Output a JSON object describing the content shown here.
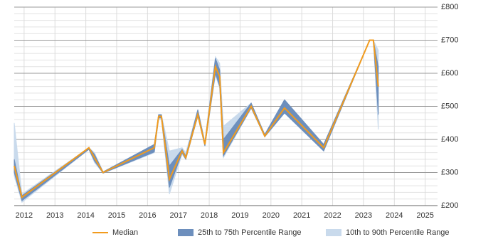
{
  "chart_data": {
    "type": "line",
    "x": [
      2011.68,
      2011.93,
      2014.1,
      2014.28,
      2014.56,
      2016.22,
      2016.36,
      2016.45,
      2016.71,
      2017.12,
      2017.24,
      2017.63,
      2017.86,
      2018.2,
      2018.34,
      2018.46,
      2019.36,
      2019.8,
      2020.44,
      2021.71,
      2023.2,
      2023.32,
      2023.48
    ],
    "series": [
      {
        "name": "10th to 90th Percentile Range",
        "color": "#c9daec",
        "low": [
          290,
          210,
          370,
          330,
          298,
          360,
          460,
          460,
          235,
          355,
          340,
          470,
          380,
          595,
          555,
          345,
          495,
          408,
          480,
          365,
          700,
          700,
          430
        ],
        "high": [
          450,
          235,
          375,
          360,
          302,
          385,
          475,
          475,
          365,
          375,
          360,
          490,
          395,
          650,
          630,
          440,
          510,
          415,
          520,
          385,
          700,
          700,
          670
        ]
      },
      {
        "name": "25th to 75th Percentile Range",
        "color": "#6d8fbd",
        "low": [
          300,
          215,
          370,
          335,
          298,
          362,
          465,
          465,
          255,
          360,
          340,
          470,
          380,
          600,
          560,
          350,
          495,
          408,
          480,
          365,
          700,
          700,
          475
        ],
        "high": [
          340,
          230,
          375,
          355,
          302,
          385,
          475,
          475,
          320,
          370,
          350,
          490,
          390,
          645,
          610,
          400,
          510,
          415,
          520,
          385,
          700,
          700,
          620
        ]
      },
      {
        "name": "Median",
        "color": "#f29b1d",
        "values": [
          320,
          225,
          375,
          345,
          300,
          375,
          470,
          470,
          280,
          365,
          345,
          475,
          385,
          620,
          590,
          360,
          500,
          410,
          495,
          375,
          700,
          700,
          560
        ]
      }
    ],
    "legend_order": [
      2,
      1,
      0
    ],
    "xlim": [
      2011.68,
      2025.4
    ],
    "xticks": [
      2012,
      2013,
      2014,
      2015,
      2016,
      2017,
      2018,
      2019,
      2020,
      2021,
      2022,
      2023,
      2024,
      2025
    ],
    "ylim": [
      200,
      800
    ],
    "yticks": [
      {
        "value": 200,
        "label": "£200"
      },
      {
        "value": 300,
        "label": "£300"
      },
      {
        "value": 400,
        "label": "£400"
      },
      {
        "value": 500,
        "label": "£500"
      },
      {
        "value": 600,
        "label": "£600"
      },
      {
        "value": 700,
        "label": "£700"
      },
      {
        "value": 800,
        "label": "£800"
      }
    ],
    "yminorticks": [
      220,
      240,
      260,
      280,
      320,
      340,
      360,
      380,
      420,
      440,
      460,
      480,
      520,
      540,
      560,
      580,
      620,
      640,
      660,
      680,
      720,
      740,
      760,
      780
    ],
    "grid": true
  }
}
